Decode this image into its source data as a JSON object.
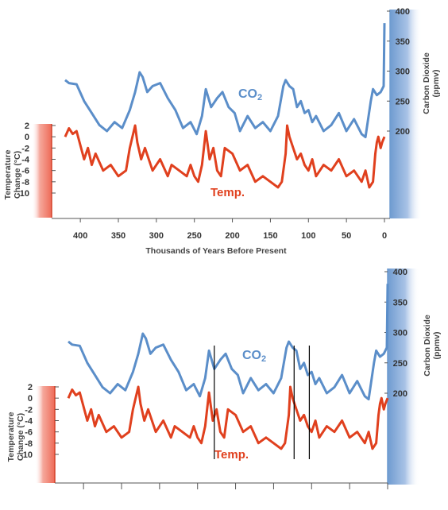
{
  "colors": {
    "co2": "#5b8ec9",
    "temp": "#e0401e",
    "axis": "#555555",
    "marker": "#000000"
  },
  "chart_data": [
    {
      "type": "line",
      "xlabel": "Thousands of Years Before Present",
      "xlim": [
        430,
        -5
      ],
      "x_ticks": [
        "400",
        "350",
        "300",
        "250",
        "200",
        "150",
        "100",
        "50",
        "0"
      ],
      "temp_axis": {
        "title_line1": "Temperature",
        "title_line2": "Change (°C)",
        "ylim": [
          -10,
          2
        ],
        "ticks": [
          "2",
          "0",
          "-2",
          "-4",
          "-6",
          "-8",
          "-10"
        ]
      },
      "co2_axis": {
        "title_line1": "Carbon Dioxide",
        "title_line2": "(ppmv)",
        "ylim": [
          200,
          400
        ],
        "ticks": [
          "400",
          "350",
          "300",
          "250",
          "200"
        ]
      },
      "series_labels": {
        "co2": "CO",
        "co2_sub": "2",
        "temp": "Temp."
      },
      "series": [
        {
          "name": "CO2",
          "unit": "ppmv",
          "x": [
            420,
            415,
            405,
            395,
            385,
            375,
            365,
            355,
            345,
            335,
            328,
            322,
            318,
            312,
            305,
            295,
            285,
            275,
            265,
            255,
            247,
            240,
            235,
            228,
            220,
            213,
            205,
            197,
            190,
            180,
            170,
            160,
            150,
            140,
            133,
            130,
            125,
            120,
            115,
            110,
            105,
            100,
            95,
            90,
            80,
            70,
            60,
            50,
            40,
            30,
            25,
            18,
            15,
            10,
            5,
            1,
            0
          ],
          "values": [
            285,
            280,
            278,
            250,
            230,
            210,
            200,
            215,
            205,
            235,
            265,
            298,
            290,
            265,
            275,
            280,
            255,
            235,
            205,
            215,
            195,
            225,
            270,
            240,
            255,
            265,
            240,
            230,
            200,
            225,
            205,
            215,
            200,
            225,
            275,
            285,
            275,
            270,
            240,
            250,
            230,
            235,
            215,
            225,
            200,
            210,
            230,
            200,
            220,
            195,
            190,
            250,
            270,
            260,
            265,
            275,
            380
          ]
        },
        {
          "name": "Temp.",
          "unit": "°C",
          "x": [
            420,
            415,
            410,
            405,
            395,
            390,
            385,
            380,
            370,
            360,
            350,
            340,
            335,
            328,
            325,
            320,
            315,
            305,
            295,
            285,
            280,
            270,
            260,
            255,
            250,
            245,
            240,
            235,
            230,
            225,
            220,
            215,
            210,
            200,
            190,
            180,
            170,
            160,
            150,
            140,
            135,
            130,
            128,
            125,
            120,
            115,
            110,
            105,
            100,
            95,
            90,
            80,
            70,
            60,
            50,
            40,
            30,
            25,
            20,
            15,
            12,
            10,
            8,
            5,
            3,
            0
          ],
          "values": [
            0,
            1.5,
            0.5,
            1,
            -4,
            -2,
            -5,
            -3,
            -6,
            -5,
            -7,
            -6,
            -2,
            2,
            -1,
            -4,
            -2,
            -6,
            -4,
            -7,
            -5,
            -6,
            -7,
            -5,
            -7,
            -8,
            -5,
            1,
            -4,
            -2,
            -6,
            -7,
            -2,
            -3,
            -6,
            -5,
            -8,
            -7,
            -8,
            -9,
            -8,
            -3,
            2,
            0,
            -2,
            -4,
            -3,
            -5,
            -6,
            -4,
            -7,
            -5,
            -6,
            -4,
            -7,
            -6,
            -8,
            -6,
            -9,
            -8,
            -3,
            -1,
            0,
            -2,
            -1,
            0
          ]
        }
      ]
    },
    {
      "type": "line",
      "xlim": [
        430,
        -5
      ],
      "temp_axis": {
        "title_line1": "Temperature",
        "title_line2": "Change (°C)",
        "ylim": [
          -10,
          2
        ],
        "ticks": [
          "2",
          "0",
          "-2",
          "-4",
          "-6",
          "-8",
          "-10"
        ]
      },
      "co2_axis": {
        "title_line1": "Carbon Dioxide",
        "title_line2": "(ppmv)",
        "ylim": [
          200,
          400
        ],
        "ticks": [
          "400",
          "350",
          "300",
          "250",
          "200"
        ]
      },
      "series_labels": {
        "co2": "CO",
        "co2_sub": "2",
        "temp": "Temp."
      },
      "marker_lines_x": [
        228,
        123,
        103
      ],
      "x_tick_positions": [
        400,
        350,
        300,
        250,
        200,
        150,
        100,
        50,
        0
      ]
    }
  ]
}
